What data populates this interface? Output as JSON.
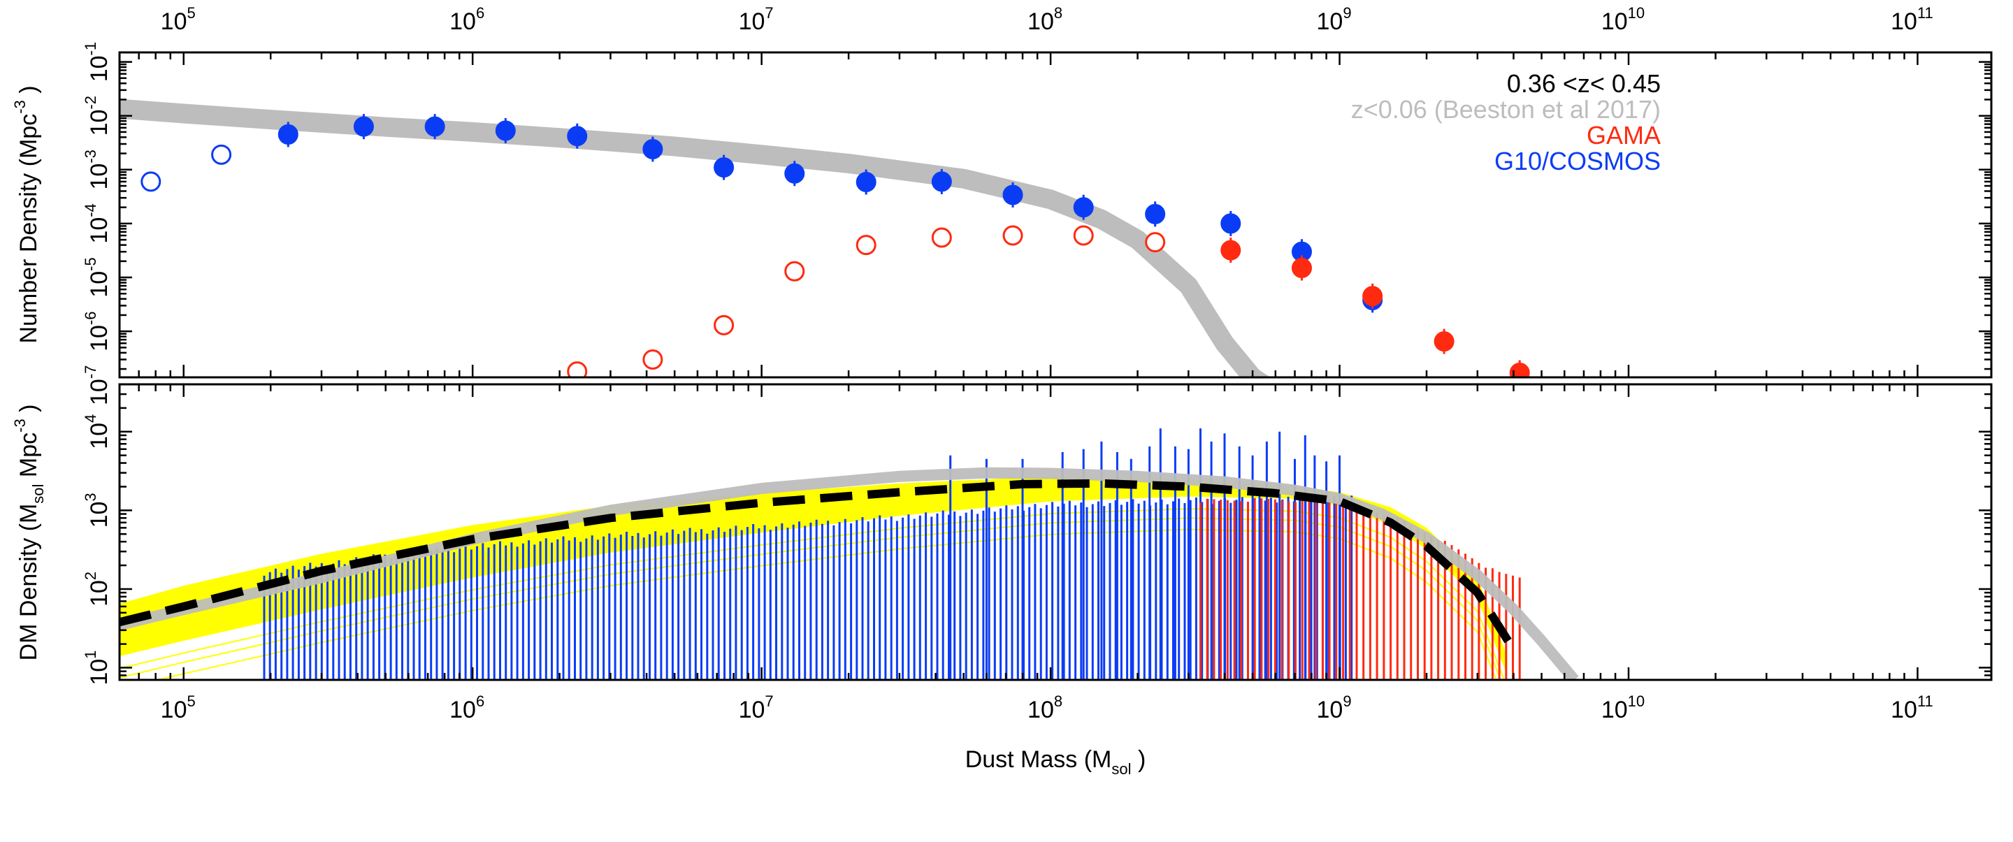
{
  "colors": {
    "gama": "#ff2a10",
    "cosmos": "#0b3cf5",
    "local": "#bdbdbd",
    "fit_band": "#ffff00",
    "fit_line": "#000000",
    "text": "#000000"
  },
  "chart_data": [
    {
      "type": "scatter",
      "title": "",
      "xlabel": "",
      "ylabel_main": "Number Density (Mpc",
      "ylabel_sup": "-3",
      "ylabel_tail": " )",
      "xscale": "log",
      "yscale": "log",
      "xlim": [
        60000,
        180000000000
      ],
      "ylim": [
        1.4e-07,
        0.15
      ],
      "x_ticks": [
        {
          "base": "10",
          "exp": "5",
          "value": 100000
        },
        {
          "base": "10",
          "exp": "6",
          "value": 1000000
        },
        {
          "base": "10",
          "exp": "7",
          "value": 10000000
        },
        {
          "base": "10",
          "exp": "8",
          "value": 100000000
        },
        {
          "base": "10",
          "exp": "9",
          "value": 1000000000
        },
        {
          "base": "10",
          "exp": "10",
          "value": 10000000000
        },
        {
          "base": "10",
          "exp": "11",
          "value": 100000000000
        }
      ],
      "y_ticks": [
        {
          "base": "10",
          "exp": "-1",
          "value": 0.1
        },
        {
          "base": "10",
          "exp": "-2",
          "value": 0.01
        },
        {
          "base": "10",
          "exp": "-3",
          "value": 0.001
        },
        {
          "base": "10",
          "exp": "-4",
          "value": 0.0001
        },
        {
          "base": "10",
          "exp": "-5",
          "value": 1e-05
        },
        {
          "base": "10",
          "exp": "-6",
          "value": 1e-06
        },
        {
          "base": "10",
          "exp": "-7",
          "value": 1e-07
        }
      ],
      "legend": {
        "placement": "top-right",
        "entries": [
          {
            "text": "0.36 <z< 0.45",
            "color": "#000000"
          },
          {
            "text": "z<0.06 (Beeston et al 2017)",
            "color": "#bdbdbd"
          },
          {
            "text": "GAMA",
            "color": "#ff2a10"
          },
          {
            "text": "G10/COSMOS",
            "color": "#0b3cf5"
          }
        ]
      },
      "series": [
        {
          "name": "G10/COSMOS",
          "color": "#0b3cf5",
          "points": [
            {
              "x": 77000,
              "y": 0.0006,
              "filled": false
            },
            {
              "x": 135000,
              "y": 0.0019,
              "filled": false
            },
            {
              "x": 230000,
              "y": 0.0045,
              "filled": true
            },
            {
              "x": 420000,
              "y": 0.0063,
              "filled": true
            },
            {
              "x": 740000,
              "y": 0.0063,
              "filled": true
            },
            {
              "x": 1300000,
              "y": 0.0053,
              "filled": true
            },
            {
              "x": 2300000,
              "y": 0.0042,
              "filled": true
            },
            {
              "x": 4200000,
              "y": 0.0024,
              "filled": true
            },
            {
              "x": 7400000,
              "y": 0.0011,
              "filled": true
            },
            {
              "x": 13000000,
              "y": 0.00085,
              "filled": true
            },
            {
              "x": 23000000,
              "y": 0.00059,
              "filled": true
            },
            {
              "x": 42000000,
              "y": 0.0006,
              "filled": true
            },
            {
              "x": 74000000,
              "y": 0.00034,
              "filled": true
            },
            {
              "x": 130000000,
              "y": 0.0002,
              "filled": true
            },
            {
              "x": 230000000,
              "y": 0.00015,
              "filled": true
            },
            {
              "x": 420000000,
              "y": 0.0001,
              "filled": true
            },
            {
              "x": 740000000,
              "y": 3e-05,
              "filled": true
            },
            {
              "x": 1300000000,
              "y": 3.8e-06,
              "filled": true
            }
          ]
        },
        {
          "name": "GAMA",
          "color": "#ff2a10",
          "points": [
            {
              "x": 2300000,
              "y": 1.8e-07,
              "filled": false
            },
            {
              "x": 4200000,
              "y": 3e-07,
              "filled": false
            },
            {
              "x": 7400000,
              "y": 1.3e-06,
              "filled": false
            },
            {
              "x": 13000000,
              "y": 1.3e-05,
              "filled": false
            },
            {
              "x": 23000000,
              "y": 4e-05,
              "filled": false
            },
            {
              "x": 42000000,
              "y": 5.5e-05,
              "filled": false
            },
            {
              "x": 74000000,
              "y": 6e-05,
              "filled": false
            },
            {
              "x": 130000000,
              "y": 6e-05,
              "filled": false
            },
            {
              "x": 230000000,
              "y": 4.5e-05,
              "filled": false
            },
            {
              "x": 420000000,
              "y": 3.2e-05,
              "filled": true
            },
            {
              "x": 740000000,
              "y": 1.5e-05,
              "filled": true
            },
            {
              "x": 1300000000,
              "y": 4.5e-06,
              "filled": true
            },
            {
              "x": 2300000000,
              "y": 6.5e-07,
              "filled": true
            },
            {
              "x": 4200000000,
              "y": 1.7e-07,
              "filled": true
            }
          ]
        }
      ],
      "reference_curve": {
        "name": "z<0.06 (Beeston et al 2017)",
        "color": "#bdbdbd",
        "x": [
          60000,
          100000,
          200000,
          500000,
          1000000,
          2000000,
          5000000,
          10000000,
          20000000,
          50000000,
          100000000,
          150000000,
          200000000,
          300000000,
          400000000,
          500000000,
          550000000
        ],
        "y": [
          0.0135,
          0.011,
          0.0085,
          0.0062,
          0.005,
          0.0039,
          0.0027,
          0.0019,
          0.0013,
          0.00068,
          0.00028,
          0.00012,
          5e-05,
          7e-06,
          6e-07,
          1.4e-07,
          1e-07
        ]
      }
    },
    {
      "type": "bar",
      "title": "",
      "xlabel_main": "Dust Mass (M",
      "xlabel_sub": "sol",
      "xlabel_tail": " )",
      "ylabel_a": "DM Density (M",
      "ylabel_sub": "sol",
      "ylabel_b": " Mpc",
      "ylabel_sup": "-3",
      "ylabel_c": " )",
      "xscale": "log",
      "yscale": "log",
      "xlim": [
        60000,
        180000000000
      ],
      "ylim": [
        7,
        40000
      ],
      "x_ticks": [
        {
          "base": "10",
          "exp": "5",
          "value": 100000
        },
        {
          "base": "10",
          "exp": "6",
          "value": 1000000
        },
        {
          "base": "10",
          "exp": "7",
          "value": 10000000
        },
        {
          "base": "10",
          "exp": "8",
          "value": 100000000
        },
        {
          "base": "10",
          "exp": "9",
          "value": 1000000000
        },
        {
          "base": "10",
          "exp": "10",
          "value": 10000000000
        },
        {
          "base": "10",
          "exp": "11",
          "value": 100000000000
        }
      ],
      "y_ticks": [
        {
          "base": "10",
          "exp": "1",
          "value": 10
        },
        {
          "base": "10",
          "exp": "2",
          "value": 100
        },
        {
          "base": "10",
          "exp": "3",
          "value": 1000
        },
        {
          "base": "10",
          "exp": "4",
          "value": 10000
        }
      ],
      "cosmos_bars": {
        "name": "G10/COSMOS",
        "color": "#0b3cf5",
        "x_range": [
          190000,
          1100000000
        ],
        "count": 190,
        "envelope": {
          "x": [
            190000,
            500000,
            1000000,
            3000000,
            10000000,
            30000000,
            60000000,
            100000000,
            300000000,
            700000000,
            1100000000
          ],
          "y": [
            180,
            290,
            380,
            520,
            680,
            900,
            1100,
            1300,
            1450,
            1550,
            1600
          ]
        },
        "spikes": {
          "x": [
            45000000,
            60000000,
            80000000,
            110000000,
            130000000,
            150000000,
            170000000,
            190000000,
            220000000,
            240000000,
            270000000,
            300000000,
            330000000,
            360000000,
            400000000,
            450000000,
            500000000,
            560000000,
            620000000,
            700000000,
            760000000,
            820000000,
            900000000,
            1000000000
          ],
          "y": [
            5000,
            4500,
            4500,
            5500,
            6000,
            7500,
            5500,
            4500,
            6500,
            11000,
            6500,
            6000,
            11000,
            7500,
            9500,
            6500,
            5000,
            7500,
            10000,
            4500,
            9000,
            5000,
            4200,
            5000
          ]
        }
      },
      "gama_bars": {
        "name": "GAMA",
        "color": "#ff2a10",
        "x_range": [
          330000000,
          4200000000
        ],
        "count": 48,
        "envelope": {
          "x": [
            330000000,
            600000000,
            1000000000,
            1500000000,
            2000000000,
            2800000000,
            3500000000,
            4200000000
          ],
          "y": [
            1400,
            1450,
            1350,
            900,
            550,
            280,
            170,
            150
          ]
        }
      },
      "reference_curve": {
        "name": "z<0.06 (Beeston et al 2017)",
        "color": "#bdbdbd",
        "x": [
          60000,
          100000,
          300000,
          1000000,
          3000000,
          10000000,
          30000000,
          60000000,
          100000000,
          200000000,
          400000000,
          700000000,
          1000000000,
          1400000000,
          2000000000,
          3000000000,
          4000000000,
          5000000000,
          6500000000
        ],
        "y": [
          35,
          55,
          140,
          430,
          1000,
          1900,
          2700,
          3000,
          2950,
          2700,
          2300,
          1800,
          1400,
          900,
          450,
          150,
          55,
          22,
          7
        ]
      },
      "fit_band": {
        "color": "#ffff00",
        "x": [
          60000,
          100000,
          300000,
          1000000,
          3000000,
          10000000,
          30000000,
          100000000,
          300000000,
          700000000,
          1000000000,
          1500000000,
          2000000000,
          3000000000,
          3800000000
        ],
        "y_low": [
          14,
          22,
          55,
          140,
          290,
          520,
          850,
          1300,
          1500,
          1400,
          1150,
          650,
          320,
          75,
          8
        ],
        "y_high": [
          65,
          110,
          280,
          650,
          1150,
          1650,
          2200,
          2700,
          2500,
          2000,
          1700,
          1100,
          600,
          140,
          14
        ]
      },
      "fit_curve": {
        "color": "#000000",
        "x": [
          60000,
          100000,
          300000,
          1000000,
          3000000,
          10000000,
          30000000,
          80000000,
          150000000,
          300000000,
          600000000,
          1000000000,
          1500000000,
          2000000000,
          3000000000,
          4000000000
        ],
        "y": [
          38,
          60,
          170,
          430,
          800,
          1250,
          1700,
          2150,
          2200,
          2000,
          1650,
          1300,
          700,
          350,
          90,
          17
        ]
      }
    }
  ]
}
